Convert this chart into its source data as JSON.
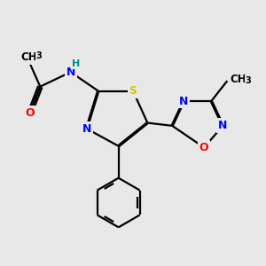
{
  "background_color": "#e8e8e8",
  "bond_color": "#000000",
  "atom_colors": {
    "N": "#0000ff",
    "O": "#ff0000",
    "S": "#cccc00",
    "C": "#000000",
    "H": "#008b8b"
  },
  "figsize": [
    3.0,
    3.0
  ],
  "dpi": 100,
  "lw": 1.6,
  "fontsize": 9
}
